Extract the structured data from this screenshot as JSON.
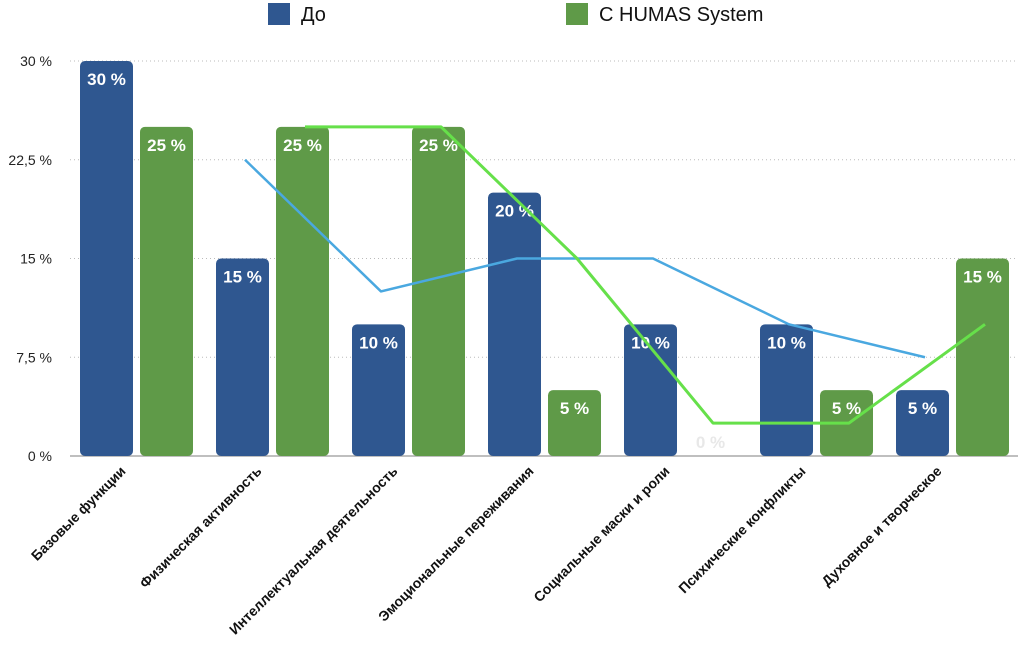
{
  "chart_data": {
    "type": "bar",
    "categories": [
      "Базовые функции",
      "Физическая активность",
      "Интеллектуальная деятельность",
      "Эмоциональные переживания",
      "Социальные маски и роли",
      "Психические конфликты",
      "Духовное и творческое"
    ],
    "series": [
      {
        "name": "До",
        "color": "#2f5790",
        "values": [
          30,
          15,
          10,
          20,
          10,
          10,
          5
        ],
        "labels": [
          "30 %",
          "15 %",
          "10 %",
          "20 %",
          "10 %",
          "10 %",
          "5 %"
        ]
      },
      {
        "name": "С HUMAS System",
        "color": "#5f9a48",
        "values": [
          25,
          25,
          25,
          5,
          0,
          5,
          15
        ],
        "labels": [
          "25 %",
          "25 %",
          "25 %",
          "5 %",
          "0 %",
          "5 %",
          "15 %"
        ]
      }
    ],
    "trend_lines": [
      {
        "series": "До",
        "color": "#4aa8e0",
        "values": [
          22.5,
          12.5,
          15,
          15,
          10,
          7.5
        ]
      },
      {
        "series": "С HUMAS System",
        "color": "#66e04a",
        "values": [
          25,
          25,
          15,
          2.5,
          2.5,
          10
        ]
      }
    ],
    "y_ticks": [
      0,
      7.5,
      15,
      22.5,
      30
    ],
    "y_tick_labels": [
      "0 %",
      "7,5 %",
      "15 %",
      "22,5 %",
      "30 %"
    ],
    "ylim": [
      0,
      30
    ],
    "legend_position": "top",
    "grid": "horizontal-dotted"
  }
}
